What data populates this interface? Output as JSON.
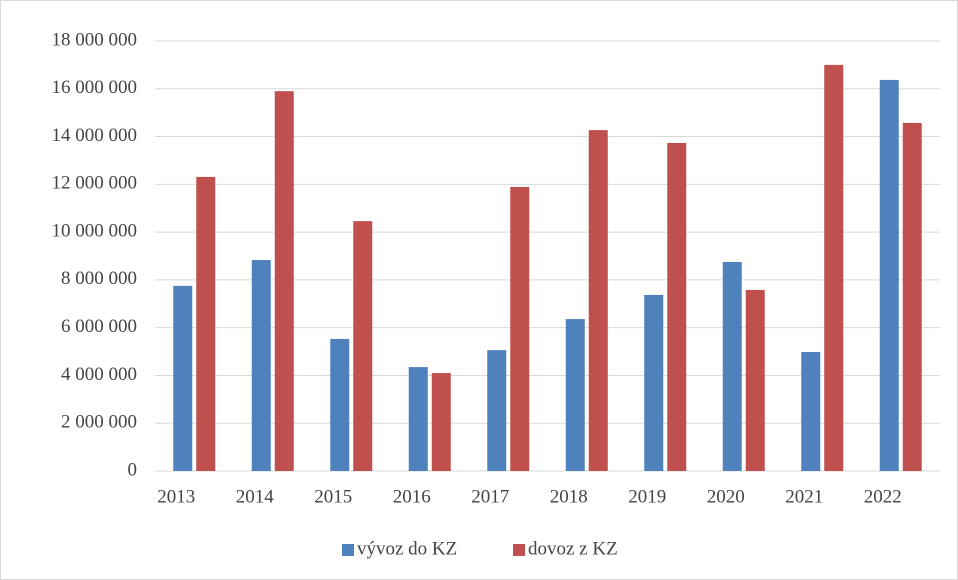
{
  "chart_data": {
    "type": "bar",
    "categories": [
      "2013",
      "2014",
      "2015",
      "2016",
      "2017",
      "2018",
      "2019",
      "2020",
      "2021",
      "2022"
    ],
    "series": [
      {
        "name": "vývoz do KZ",
        "color": "#4f81bd",
        "values": [
          7750000,
          8830000,
          5530000,
          4350000,
          5060000,
          6360000,
          7370000,
          8750000,
          4980000,
          16370000
        ]
      },
      {
        "name": "dovoz z KZ",
        "color": "#c0504d",
        "values": [
          12310000,
          15900000,
          10460000,
          4100000,
          11890000,
          14270000,
          13730000,
          7580000,
          17000000,
          14570000
        ]
      }
    ],
    "ylim": [
      0,
      18000000
    ],
    "yticks": [
      0,
      {
        "value": 2000000,
        "label": "2 000 000"
      },
      {
        "value": 4000000,
        "label": "4 000 000"
      },
      {
        "value": 6000000,
        "label": "6 000 000"
      },
      {
        "value": 8000000,
        "label": "8 000 000"
      },
      {
        "value": 10000000,
        "label": "10 000 000"
      },
      {
        "value": 12000000,
        "label": "12 000 000"
      },
      {
        "value": 14000000,
        "label": "14 000 000"
      },
      {
        "value": 16000000,
        "label": "16 000 000"
      },
      {
        "value": 18000000,
        "label": "18 000 000"
      }
    ],
    "grid": true,
    "legend": "bottom"
  }
}
